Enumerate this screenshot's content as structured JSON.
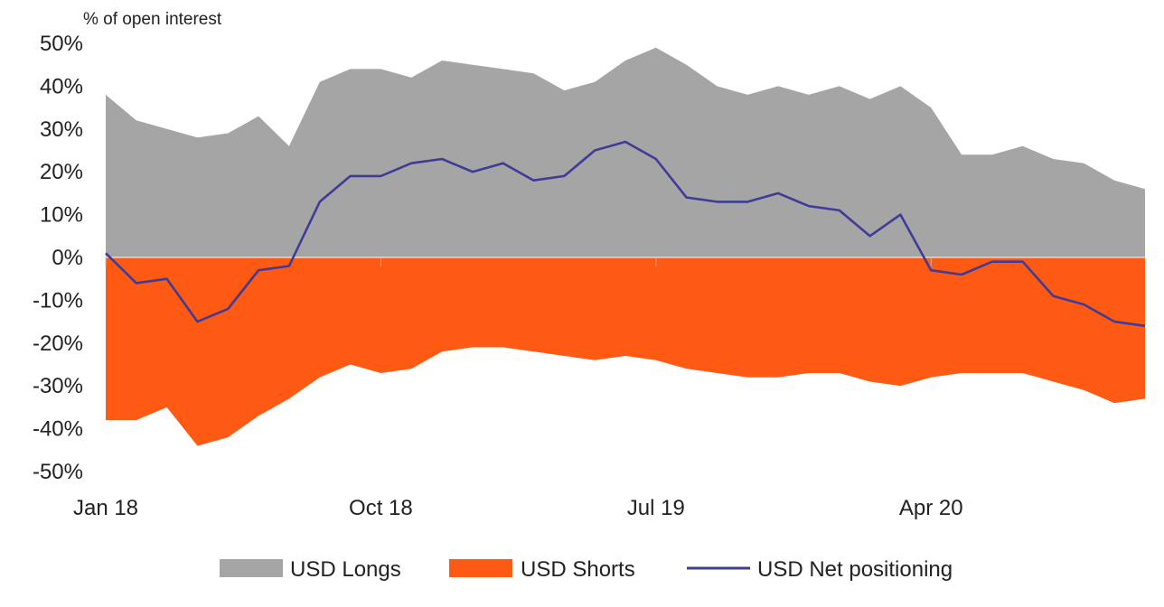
{
  "chart_data": {
    "type": "area",
    "title": "",
    "ylabel": "% of open interest",
    "xlabel": "",
    "ylim": [
      -50,
      50
    ],
    "y_ticks": [
      {
        "value": 50,
        "label": "50%"
      },
      {
        "value": 40,
        "label": "40%"
      },
      {
        "value": 30,
        "label": "30%"
      },
      {
        "value": 20,
        "label": "20%"
      },
      {
        "value": 10,
        "label": "10%"
      },
      {
        "value": 0,
        "label": "0%"
      },
      {
        "value": -10,
        "label": "-10%"
      },
      {
        "value": -20,
        "label": "-20%"
      },
      {
        "value": -30,
        "label": "-30%"
      },
      {
        "value": -40,
        "label": "-40%"
      },
      {
        "value": -50,
        "label": "-50%"
      }
    ],
    "x_ticks": [
      {
        "value": "2018-01",
        "label": "Jan 18"
      },
      {
        "value": "2018-10",
        "label": "Oct 18"
      },
      {
        "value": "2019-07",
        "label": "Jul 19"
      },
      {
        "value": "2020-04",
        "label": "Apr 20"
      }
    ],
    "x_range": [
      "2018-01",
      "2020-11"
    ],
    "grid": false,
    "legend_position": "bottom",
    "legend": [
      {
        "label": "USD Longs",
        "color": "#a5a5a5",
        "kind": "area"
      },
      {
        "label": "USD Shorts",
        "color": "#ff5a14",
        "kind": "area"
      },
      {
        "label": "USD Net positioning",
        "color": "#3f3c97",
        "kind": "line"
      }
    ],
    "x": [
      "2018-01",
      "2018-02",
      "2018-03",
      "2018-04",
      "2018-05",
      "2018-06",
      "2018-07",
      "2018-08",
      "2018-09",
      "2018-10",
      "2018-11",
      "2018-12",
      "2019-01",
      "2019-02",
      "2019-03",
      "2019-04",
      "2019-05",
      "2019-06",
      "2019-07",
      "2019-08",
      "2019-09",
      "2019-10",
      "2019-11",
      "2019-12",
      "2020-01",
      "2020-02",
      "2020-03",
      "2020-04",
      "2020-05",
      "2020-06",
      "2020-07",
      "2020-08",
      "2020-09",
      "2020-10",
      "2020-11"
    ],
    "series": [
      {
        "name": "USD Longs",
        "color": "#a5a5a5",
        "values": [
          38,
          32,
          30,
          28,
          29,
          33,
          26,
          41,
          44,
          44,
          42,
          46,
          45,
          44,
          43,
          39,
          41,
          46,
          49,
          45,
          40,
          38,
          40,
          38,
          40,
          37,
          40,
          35,
          24,
          24,
          26,
          23,
          22,
          18,
          16
        ]
      },
      {
        "name": "USD Shorts",
        "color": "#ff5a14",
        "values": [
          -38,
          -38,
          -35,
          -44,
          -42,
          -37,
          -33,
          -28,
          -25,
          -27,
          -26,
          -22,
          -21,
          -21,
          -22,
          -23,
          -24,
          -23,
          -24,
          -26,
          -27,
          -28,
          -28,
          -27,
          -27,
          -29,
          -30,
          -28,
          -27,
          -27,
          -27,
          -29,
          -31,
          -34,
          -33
        ]
      },
      {
        "name": "USD Net positioning",
        "color": "#3f3c97",
        "values": [
          1,
          -6,
          -5,
          -15,
          -12,
          -3,
          -2,
          13,
          19,
          19,
          22,
          23,
          20,
          22,
          18,
          19,
          25,
          27,
          23,
          14,
          13,
          13,
          15,
          12,
          11,
          5,
          10,
          -3,
          -4,
          -1,
          -1,
          -9,
          -11,
          -15,
          -16
        ]
      }
    ]
  }
}
